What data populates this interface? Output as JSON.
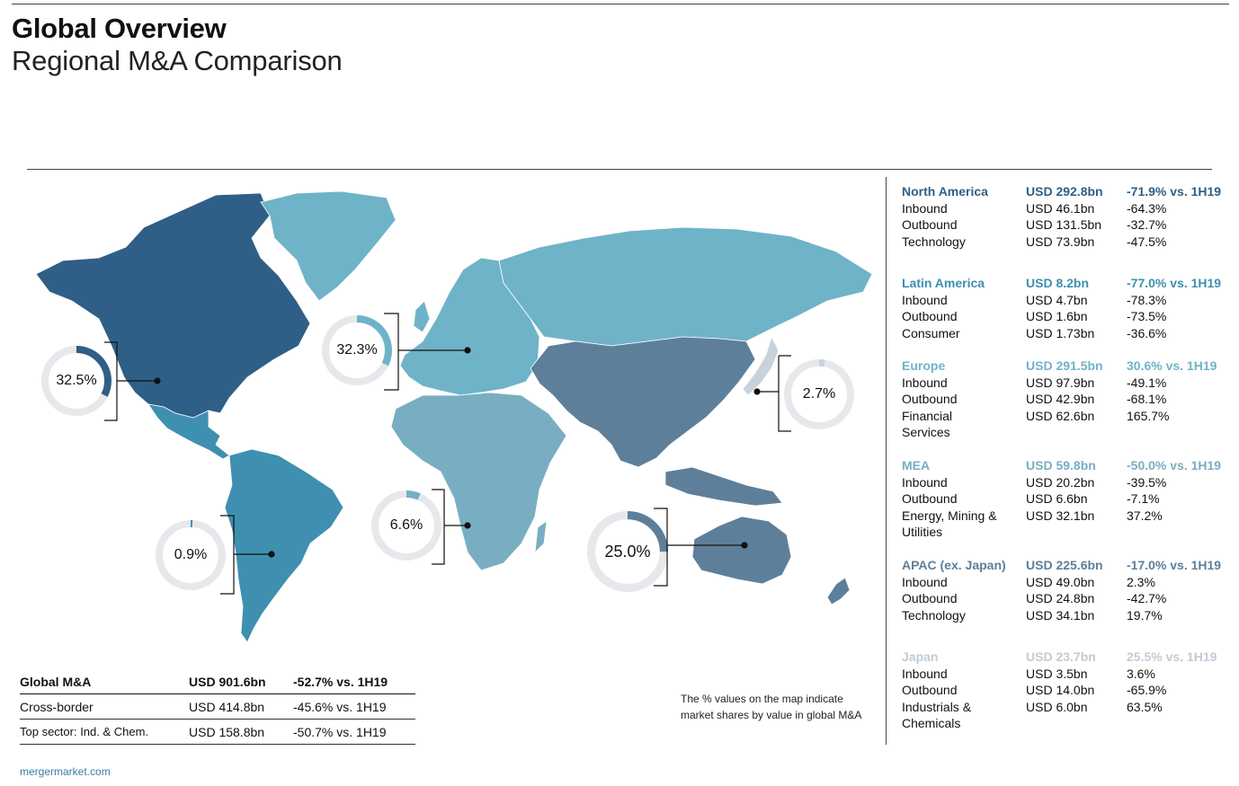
{
  "header": {
    "title": "Global Overview",
    "subtitle": "Regional M&A Comparison"
  },
  "colors": {
    "north_america": "#2f5f86",
    "latin_america": "#3f8fb0",
    "europe": "#6fb3c9",
    "mea": "#79aec2",
    "apac": "#5e7f9a",
    "japan": "#c9d2dc",
    "donut_track": "#e6e8ec"
  },
  "map": {
    "donuts": [
      {
        "id": "north-america",
        "label": "32.5%",
        "value": 32.5,
        "color": "#2f5f86"
      },
      {
        "id": "europe",
        "label": "32.3%",
        "value": 32.3,
        "color": "#6fb3c9"
      },
      {
        "id": "japan",
        "label": "2.7%",
        "value": 2.7,
        "color": "#c9d2dc"
      },
      {
        "id": "latin-america",
        "label": "0.9%",
        "value": 0.9,
        "color": "#3f8fb0"
      },
      {
        "id": "mea",
        "label": "6.6%",
        "value": 6.6,
        "color": "#79aec2"
      },
      {
        "id": "apac",
        "label": "25.0%",
        "value": 25.0,
        "color": "#5e7f9a"
      }
    ]
  },
  "regions": [
    {
      "name": "North America",
      "total": "USD 292.8bn",
      "change": "-71.9% vs. 1H19",
      "color": "#2f5f86",
      "rows": [
        [
          "Inbound",
          "USD 46.1bn",
          "-64.3%"
        ],
        [
          "Outbound",
          "USD 131.5bn",
          "-32.7%"
        ],
        [
          "Technology",
          "USD 73.9bn",
          "-47.5%"
        ]
      ]
    },
    {
      "name": "Latin America",
      "total": "USD 8.2bn",
      "change": "-77.0% vs. 1H19",
      "color": "#3f8fb0",
      "rows": [
        [
          "Inbound",
          "USD 4.7bn",
          "-78.3%"
        ],
        [
          "Outbound",
          "USD 1.6bn",
          "-73.5%"
        ],
        [
          "Consumer",
          "USD 1.73bn",
          "-36.6%"
        ]
      ]
    },
    {
      "name": "Europe",
      "total": "USD 291.5bn",
      "change": "30.6% vs. 1H19",
      "color": "#6fb3c9",
      "rows": [
        [
          "Inbound",
          "USD 97.9bn",
          "-49.1%"
        ],
        [
          "Outbound",
          "USD 42.9bn",
          "-68.1%"
        ],
        [
          "Financial",
          "USD 62.6bn",
          "165.7%"
        ],
        [
          "Services",
          "",
          ""
        ]
      ]
    },
    {
      "name": "MEA",
      "total": "USD 59.8bn",
      "change": "-50.0% vs. 1H19",
      "color": "#79aec2",
      "rows": [
        [
          "Inbound",
          "USD 20.2bn",
          "-39.5%"
        ],
        [
          "Outbound",
          "USD 6.6bn",
          "-7.1%"
        ],
        [
          "Energy, Mining &",
          "USD 32.1bn",
          "37.2%"
        ],
        [
          "Utilities",
          "",
          ""
        ]
      ]
    },
    {
      "name": "APAC (ex. Japan)",
      "total": "USD 225.6bn",
      "change": "-17.0% vs. 1H19",
      "color": "#5e7f9a",
      "rows": [
        [
          "Inbound",
          "USD 49.0bn",
          "2.3%"
        ],
        [
          "Outbound",
          "USD 24.8bn",
          "-42.7%"
        ],
        [
          "Technology",
          "USD 34.1bn",
          "19.7%"
        ]
      ]
    },
    {
      "name": "Japan",
      "total": "USD 23.7bn",
      "change": "25.5% vs. 1H19",
      "color": "#c2cbd6",
      "rows": [
        [
          "Inbound",
          "USD 3.5bn",
          "3.6%"
        ],
        [
          "Outbound",
          "USD 14.0bn",
          "-65.9%"
        ],
        [
          "Industrials &",
          "USD 6.0bn",
          "63.5%"
        ],
        [
          "Chemicals",
          "",
          ""
        ]
      ]
    }
  ],
  "summary": {
    "rows": [
      [
        "Global M&A",
        "USD 901.6bn",
        "-52.7% vs. 1H19"
      ],
      [
        "Cross-border",
        "USD 414.8bn",
        "-45.6% vs. 1H19"
      ],
      [
        "Top sector: Ind. & Chem.",
        "USD 158.8bn",
        "-50.7% vs. 1H19"
      ]
    ]
  },
  "note": {
    "line1": "The % values on the map indicate",
    "line2": "market shares by value in global M&A"
  },
  "footer": "mergermarket.com"
}
